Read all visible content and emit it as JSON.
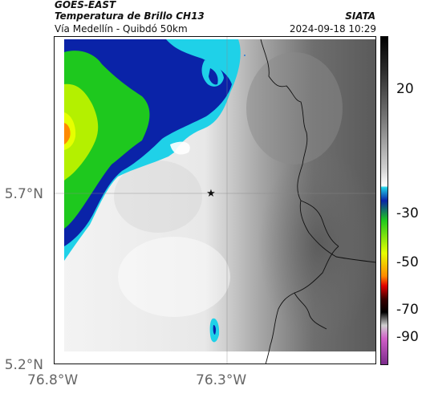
{
  "header": {
    "source": "GOES-EAST",
    "product": "Temperatura de Brillo CH13",
    "subtitle": "Vía Medellín - Quibdó 50km",
    "organization": "SIATA",
    "datetime": "2024-09-18 10:29"
  },
  "axes": {
    "lat_labels": [
      "5.7°N",
      "5.2°N"
    ],
    "lon_labels": [
      "76.8°W",
      "76.3°W"
    ]
  },
  "colorbar": {
    "tick_labels": [
      "20",
      "-30",
      "-50",
      "-70",
      "-90"
    ]
  },
  "colors": {
    "cold_cloud_blue": "#0a23a8",
    "cyan": "#1fd1e8",
    "green": "#1ec81e",
    "yellow": "#e6ff00",
    "orange": "#ff8a00",
    "gray_warm": "#5a5a5a",
    "gray_light": "#f2f2f2"
  },
  "marker": {
    "icon": "star-icon"
  }
}
